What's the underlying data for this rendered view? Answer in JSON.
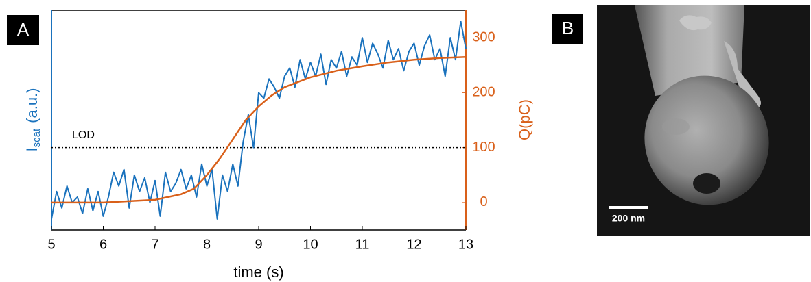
{
  "panels": [
    "A",
    "B"
  ],
  "image": {
    "scale_bar": "200 nm"
  },
  "chart_data": {
    "type": "line",
    "xlabel": "time (s)",
    "ylabel": {
      "main": "I",
      "sub": "scat",
      "unit": "(a.u.)"
    },
    "y2label": "Q(pC)",
    "xlim": [
      5,
      13
    ],
    "xticks": [
      5,
      6,
      7,
      8,
      9,
      10,
      11,
      12,
      13
    ],
    "ylim": [
      -50,
      350
    ],
    "y2lim": [
      -50,
      350
    ],
    "y2ticks": [
      0,
      100,
      200,
      300
    ],
    "annotations": [
      {
        "text": "LOD",
        "value": 100,
        "axis": "y2"
      }
    ],
    "series": [
      {
        "name": "Iscat",
        "color": "#1a72bd",
        "axis": "y",
        "x": [
          5.0,
          5.1,
          5.2,
          5.3,
          5.4,
          5.5,
          5.6,
          5.7,
          5.8,
          5.9,
          6.0,
          6.1,
          6.2,
          6.3,
          6.4,
          6.5,
          6.6,
          6.7,
          6.8,
          6.9,
          7.0,
          7.1,
          7.2,
          7.3,
          7.4,
          7.5,
          7.6,
          7.7,
          7.8,
          7.9,
          8.0,
          8.1,
          8.2,
          8.3,
          8.4,
          8.5,
          8.6,
          8.7,
          8.8,
          8.9,
          9.0,
          9.1,
          9.2,
          9.3,
          9.4,
          9.5,
          9.6,
          9.7,
          9.8,
          9.9,
          10.0,
          10.1,
          10.2,
          10.3,
          10.4,
          10.5,
          10.6,
          10.7,
          10.8,
          10.9,
          11.0,
          11.1,
          11.2,
          11.3,
          11.4,
          11.5,
          11.6,
          11.7,
          11.8,
          11.9,
          12.0,
          12.1,
          12.2,
          12.3,
          12.4,
          12.5,
          12.6,
          12.7,
          12.8,
          12.9,
          13.0
        ],
        "values": [
          -30,
          20,
          -10,
          30,
          0,
          10,
          -20,
          25,
          -15,
          20,
          -25,
          10,
          55,
          30,
          60,
          -10,
          50,
          20,
          45,
          0,
          40,
          -25,
          55,
          20,
          35,
          60,
          25,
          50,
          10,
          70,
          30,
          60,
          -30,
          50,
          20,
          70,
          30,
          110,
          160,
          100,
          200,
          190,
          225,
          210,
          190,
          230,
          245,
          210,
          260,
          225,
          255,
          230,
          270,
          215,
          260,
          245,
          275,
          230,
          265,
          250,
          300,
          255,
          290,
          270,
          245,
          295,
          260,
          280,
          240,
          275,
          290,
          250,
          285,
          305,
          260,
          280,
          230,
          300,
          260,
          330,
          280
        ]
      },
      {
        "name": "Q",
        "color": "#d9601a",
        "axis": "y2",
        "x": [
          5,
          6,
          7,
          7.5,
          7.75,
          8,
          8.25,
          8.5,
          8.75,
          9,
          9.25,
          9.5,
          10,
          10.5,
          11,
          11.5,
          12,
          12.5,
          13
        ],
        "values": [
          0,
          0,
          5,
          15,
          25,
          50,
          80,
          115,
          150,
          175,
          195,
          210,
          228,
          240,
          248,
          255,
          260,
          263,
          265
        ]
      }
    ]
  }
}
